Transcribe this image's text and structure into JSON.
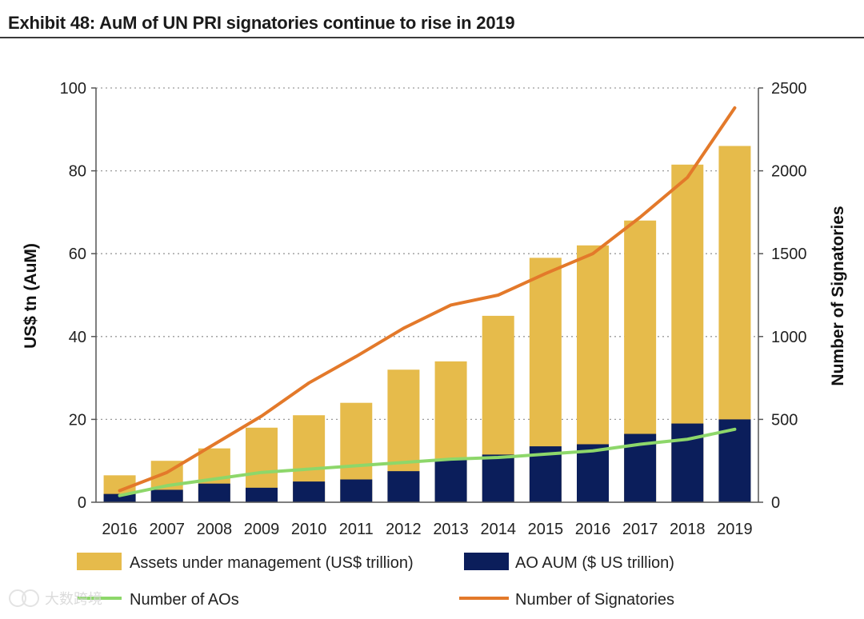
{
  "title": "Exhibit 48: AuM of UN PRI signatories continue to rise in 2019",
  "watermark": "大数跨境",
  "colors": {
    "aum_bar": "#E6BB4B",
    "ao_bar": "#0B1E5B",
    "aos_line": "#8DD76A",
    "signatories_line": "#E3792A",
    "grid": "#9a9a9a"
  },
  "chart_data": {
    "type": "bar",
    "categories": [
      "2016",
      "2007",
      "2008",
      "2009",
      "2010",
      "2011",
      "2012",
      "2013",
      "2014",
      "2015",
      "2016",
      "2017",
      "2018",
      "2019"
    ],
    "ylabel": "US$ tn (AuM)",
    "y2label": "Number of Signatories",
    "ylim": [
      0,
      100
    ],
    "y2lim": [
      0,
      2500
    ],
    "yticks": [
      "0",
      "20",
      "40",
      "60",
      "80",
      "100"
    ],
    "y2ticks": [
      "0",
      "500",
      "1000",
      "1500",
      "2000",
      "2500"
    ],
    "grid": "horizontal dotted",
    "legend_position": "bottom",
    "series": [
      {
        "name": "Assets under management (US$ trillion)",
        "type": "bar",
        "axis": "left",
        "values": [
          6.5,
          10,
          13,
          18,
          21,
          24,
          32,
          34,
          45,
          59,
          62,
          68,
          81.5,
          86
        ]
      },
      {
        "name": "AO AUM ($ US trillion)",
        "type": "bar",
        "axis": "left",
        "values": [
          2,
          3,
          4.5,
          3.5,
          5,
          5.5,
          7.5,
          10.5,
          11.5,
          13.5,
          14,
          16.5,
          19,
          20
        ]
      },
      {
        "name": "Number of AOs",
        "type": "line",
        "axis": "right",
        "values": [
          40,
          100,
          140,
          180,
          200,
          220,
          240,
          260,
          270,
          290,
          310,
          350,
          380,
          440
        ]
      },
      {
        "name": "Number of Signatories",
        "type": "line",
        "axis": "right",
        "values": [
          70,
          180,
          350,
          520,
          720,
          880,
          1050,
          1190,
          1250,
          1380,
          1500,
          1720,
          1960,
          2380
        ]
      }
    ]
  }
}
